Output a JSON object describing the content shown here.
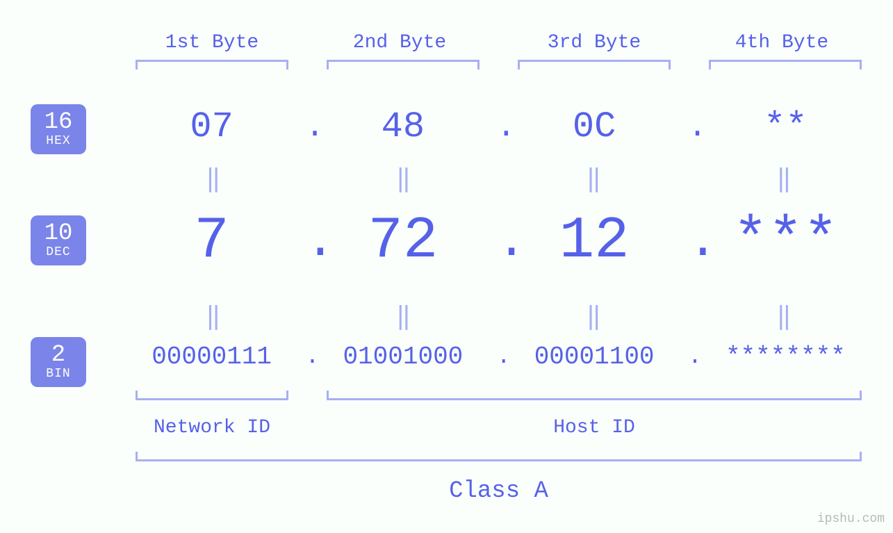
{
  "colors": {
    "background": "#fafffc",
    "primary_text": "#5661e8",
    "bracket": "#a6b0f0",
    "badge_bg": "#7b84e8",
    "badge_text": "#ffffff",
    "watermark": "#b8b8b8"
  },
  "typography": {
    "font_family": "Courier New, monospace",
    "byte_header_size": 28,
    "hex_size": 52,
    "dec_size": 84,
    "bin_size": 36,
    "equals_size": 36,
    "label_size": 28,
    "class_size": 34,
    "badge_num_size": 34,
    "badge_lbl_size": 18
  },
  "byte_headers": [
    "1st Byte",
    "2nd Byte",
    "3rd Byte",
    "4th Byte"
  ],
  "bases": {
    "hex": {
      "num": "16",
      "label": "HEX"
    },
    "dec": {
      "num": "10",
      "label": "DEC"
    },
    "bin": {
      "num": "2",
      "label": "BIN"
    }
  },
  "ip": {
    "hex": [
      "07",
      "48",
      "0C",
      "**"
    ],
    "dec": [
      "7",
      "72",
      "12",
      "***"
    ],
    "bin": [
      "00000111",
      "01001000",
      "00001100",
      "********"
    ]
  },
  "separator": ".",
  "equals": "‖",
  "sections": {
    "network": "Network ID",
    "host": "Host ID",
    "class": "Class A"
  },
  "watermark": "ipshu.com",
  "structure": {
    "type": "infographic",
    "layout": "ip-address-bytes",
    "columns": 4,
    "network_bytes": 1,
    "host_bytes": 3
  }
}
